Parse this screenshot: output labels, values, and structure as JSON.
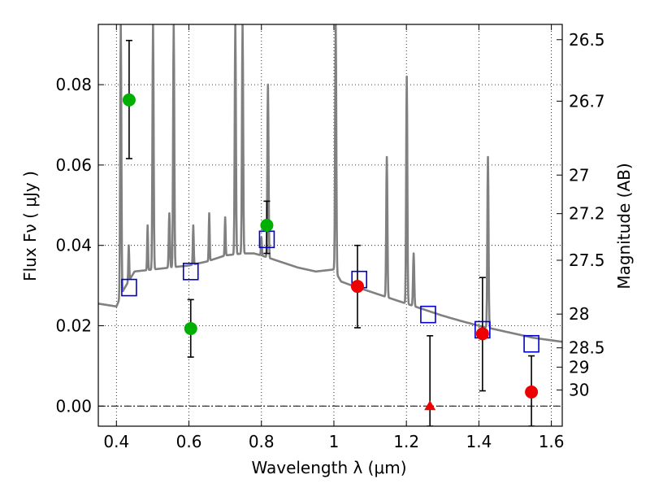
{
  "chart_data": {
    "type": "scatter",
    "xlabel": "Wavelength  λ (μm)",
    "ylabel": "Flux  Fν  ( μJy )",
    "y2label": "Magnitude (AB)",
    "xlim": [
      0.35,
      1.63
    ],
    "ylim": [
      -0.005,
      0.095
    ],
    "grid": true,
    "x_ticks": [
      0.4,
      0.6,
      0.8,
      1.0,
      1.2,
      1.4,
      1.6
    ],
    "x_tick_labels": [
      "0.4",
      "0.6",
      "0.8",
      "1",
      "1.2",
      "1.4",
      "1.6"
    ],
    "y_ticks": [
      0.0,
      0.02,
      0.04,
      0.06,
      0.08
    ],
    "y_tick_labels": [
      "0.00",
      "0.02",
      "0.04",
      "0.06",
      "0.08"
    ],
    "y2_ticks": [
      {
        "label": "26.5",
        "flux": 0.0912
      },
      {
        "label": "26.7",
        "flux": 0.0759
      },
      {
        "label": "27",
        "flux": 0.0575
      },
      {
        "label": "27.2",
        "flux": 0.0479
      },
      {
        "label": "27.5",
        "flux": 0.0363
      },
      {
        "label": "28",
        "flux": 0.0229
      },
      {
        "label": "28.5",
        "flux": 0.0145
      },
      {
        "label": "29",
        "flux": 0.0097
      },
      {
        "label": "30",
        "flux": 0.004
      }
    ],
    "colors": {
      "model": "#808080",
      "model_photometry": "#0000cc",
      "green_points": "#00b000",
      "red_points": "#ee0000",
      "errorbar": "#000000",
      "zero_line": "#000000"
    },
    "series": [
      {
        "kind": "model_spectrum",
        "continuum_x": [
          0.35,
          0.4,
          0.42,
          0.45,
          0.5,
          0.55,
          0.6,
          0.65,
          0.7,
          0.75,
          0.78,
          0.8,
          0.85,
          0.9,
          0.95,
          1.0,
          1.02,
          1.05,
          1.1,
          1.15,
          1.2,
          1.25,
          1.3,
          1.35,
          1.4,
          1.45,
          1.5,
          1.55,
          1.63
        ],
        "continuum_y": [
          0.0255,
          0.0248,
          0.029,
          0.0335,
          0.034,
          0.0345,
          0.035,
          0.036,
          0.0375,
          0.038,
          0.038,
          0.0375,
          0.036,
          0.0345,
          0.0335,
          0.034,
          0.031,
          0.03,
          0.0285,
          0.027,
          0.0255,
          0.024,
          0.0225,
          0.0212,
          0.02,
          0.019,
          0.018,
          0.017,
          0.016
        ],
        "emission_lines": [
          {
            "x": 0.412,
            "peak": 0.095,
            "width": 0.004
          },
          {
            "x": 0.434,
            "peak": 0.04,
            "width": 0.003
          },
          {
            "x": 0.486,
            "peak": 0.045,
            "width": 0.003
          },
          {
            "x": 0.501,
            "peak": 0.095,
            "width": 0.004
          },
          {
            "x": 0.546,
            "peak": 0.048,
            "width": 0.004
          },
          {
            "x": 0.558,
            "peak": 0.095,
            "width": 0.004
          },
          {
            "x": 0.612,
            "peak": 0.045,
            "width": 0.003
          },
          {
            "x": 0.656,
            "peak": 0.048,
            "width": 0.003
          },
          {
            "x": 0.7,
            "peak": 0.047,
            "width": 0.003
          },
          {
            "x": 0.728,
            "peak": 0.095,
            "width": 0.004
          },
          {
            "x": 0.748,
            "peak": 0.095,
            "width": 0.004
          },
          {
            "x": 0.8,
            "peak": 0.042,
            "width": 0.003
          },
          {
            "x": 0.818,
            "peak": 0.08,
            "width": 0.004
          },
          {
            "x": 1.005,
            "peak": 0.095,
            "width": 0.004
          },
          {
            "x": 1.146,
            "peak": 0.062,
            "width": 0.004
          },
          {
            "x": 1.201,
            "peak": 0.082,
            "width": 0.004
          },
          {
            "x": 1.22,
            "peak": 0.038,
            "width": 0.004
          },
          {
            "x": 1.425,
            "peak": 0.062,
            "width": 0.004
          }
        ]
      },
      {
        "kind": "model_photometry",
        "marker": "open-square",
        "x": [
          0.435,
          0.605,
          0.815,
          1.07,
          1.26,
          1.41,
          1.545
        ],
        "y": [
          0.0295,
          0.0335,
          0.0415,
          0.0315,
          0.0228,
          0.019,
          0.0155
        ]
      },
      {
        "kind": "observed_green",
        "marker": "circle",
        "x": [
          0.435,
          0.605,
          0.815
        ],
        "y": [
          0.0762,
          0.0193,
          0.045
        ],
        "yerr_low": [
          0.0616,
          0.0122,
          0.038
        ],
        "yerr_high": [
          0.091,
          0.0265,
          0.051
        ]
      },
      {
        "kind": "observed_red",
        "marker": "circle",
        "x": [
          1.065,
          1.41,
          1.545
        ],
        "y": [
          0.0298,
          0.018,
          0.0035
        ],
        "yerr_low": [
          0.0195,
          0.0038,
          -0.005
        ],
        "yerr_high": [
          0.04,
          0.032,
          0.0125
        ]
      },
      {
        "kind": "upper_limit_red",
        "marker": "triangle",
        "x": [
          1.265
        ],
        "y": [
          0.0
        ],
        "yerr_low": [
          -0.005
        ],
        "yerr_high": [
          0.0175
        ]
      }
    ]
  }
}
